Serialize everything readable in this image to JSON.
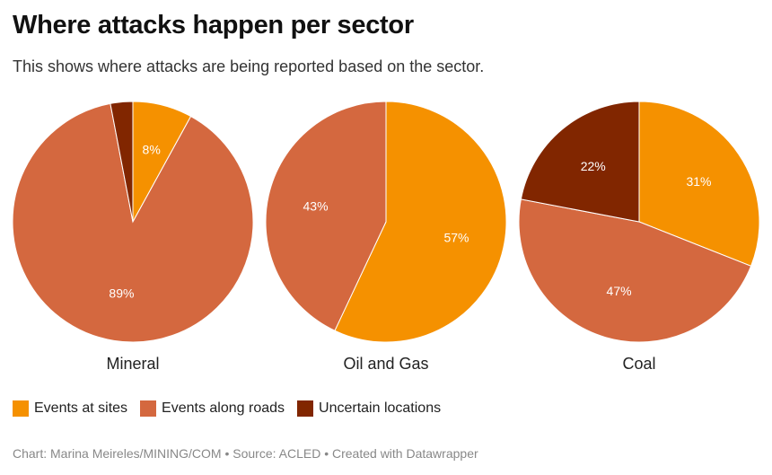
{
  "header": {
    "title": "Where attacks happen per sector",
    "subtitle": "This shows where attacks are being reported based on the sector."
  },
  "colors": {
    "events_at_sites": "#F59100",
    "events_along_roads": "#D4683F",
    "uncertain_locations": "#812600"
  },
  "chart_data": [
    {
      "type": "pie",
      "label": "Mineral",
      "slices": [
        {
          "name": "Events at sites",
          "value": 8,
          "label": "8%"
        },
        {
          "name": "Events along roads",
          "value": 89,
          "label": "89%"
        },
        {
          "name": "Uncertain locations",
          "value": 3,
          "label": ""
        }
      ]
    },
    {
      "type": "pie",
      "label": "Oil and Gas",
      "slices": [
        {
          "name": "Events at sites",
          "value": 57,
          "label": "57%"
        },
        {
          "name": "Events along roads",
          "value": 43,
          "label": "43%"
        },
        {
          "name": "Uncertain locations",
          "value": 0,
          "label": ""
        }
      ]
    },
    {
      "type": "pie",
      "label": "Coal",
      "slices": [
        {
          "name": "Events at sites",
          "value": 31,
          "label": "31%"
        },
        {
          "name": "Events along roads",
          "value": 47,
          "label": "47%"
        },
        {
          "name": "Uncertain locations",
          "value": 22,
          "label": "22%"
        }
      ]
    }
  ],
  "legend": [
    {
      "label": "Events at sites",
      "color": "#F59100"
    },
    {
      "label": "Events along roads",
      "color": "#D4683F"
    },
    {
      "label": "Uncertain locations",
      "color": "#812600"
    }
  ],
  "footer": {
    "credit": "Chart: Marina Meireles/MINING/COM • Source: ACLED • Created with Datawrapper"
  }
}
